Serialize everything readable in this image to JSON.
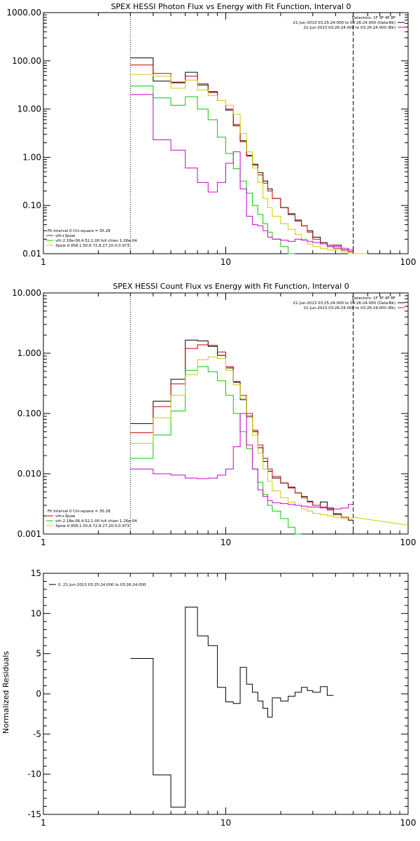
{
  "chart_data": [
    {
      "type": "line",
      "title": "SPEX HESSI Photon Flux vs Energy with Fit Function, Interval 0",
      "xscale": "log",
      "yscale": "log",
      "xlim": [
        1,
        100
      ],
      "ylim": [
        0.01,
        1000
      ],
      "xticks": [
        {
          "v": 1,
          "label": "1"
        },
        {
          "v": 10,
          "label": "10"
        },
        {
          "v": 100,
          "label": "100"
        }
      ],
      "yticks": [
        {
          "v": 0.01,
          "label": "0.01"
        },
        {
          "v": 0.1,
          "label": "0.10"
        },
        {
          "v": 1,
          "label": "1.00"
        },
        {
          "v": 10,
          "label": "10.00"
        },
        {
          "v": 100,
          "label": "100.00"
        },
        {
          "v": 1000,
          "label": "1000.00"
        }
      ],
      "energy_range_markers": [
        3,
        50
      ],
      "header_lines": [
        {
          "text": "Detectors: 1F 3F 4F 8F",
          "color": null
        },
        {
          "text": "21-Jun-2013 03:25:24.000 to 03:26:24.000 (Data-Bk)",
          "color": "#000000"
        },
        {
          "text": "21-Jun-2013 03:26:24.000 to 03:26:24.000 (Bk)",
          "color": "#cc00cc"
        }
      ],
      "fit_info": [
        "Fit Interval 0   Chi-square = 35.28",
        "vth+3pow",
        "vth 2.18e-06,4.52,1.00   full chian 1.26e-04",
        "3pow 0.958,1.50,6.72,8.27,20.0,0.973"
      ],
      "fit_info_colors": [
        null,
        "#cc0000",
        "#00cc00",
        "#cccc00"
      ],
      "edges": [
        3,
        4,
        5,
        6,
        7,
        8,
        9,
        10,
        11,
        12,
        13,
        14,
        15,
        16,
        17,
        18,
        20,
        22,
        24,
        26,
        28,
        30,
        33,
        36,
        39,
        43,
        47,
        50,
        55,
        60
      ],
      "series": [
        {
          "color": "#000000",
          "values": [
            115,
            38,
            36,
            58,
            33,
            23,
            15,
            9.5,
            4.5,
            2.2,
            1.1,
            0.72,
            0.48,
            0.32,
            0.22,
            0.14,
            0.09,
            0.065,
            0.048,
            0.038,
            0.03,
            0.022,
            0.017,
            0.015,
            0.015,
            0.012,
            0.011,
            null,
            null
          ]
        },
        {
          "color": "#cc0000",
          "values": [
            82,
            55,
            35,
            48,
            31,
            22,
            15,
            10,
            4.8,
            2.1,
            1.05,
            0.68,
            0.43,
            0.29,
            0.2,
            0.14,
            0.09,
            0.068,
            0.05,
            0.038,
            0.028,
            0.02,
            0.016,
            0.014,
            0.013,
            0.012,
            0.011,
            null,
            null
          ]
        },
        {
          "color": "#00cc00",
          "values": [
            30,
            17,
            12,
            18,
            10,
            6,
            2.6,
            1.2,
            0.58,
            0.32,
            0.18,
            0.1,
            0.065,
            0.042,
            0.028,
            0.02,
            0.014,
            0.01,
            null,
            null,
            null,
            null,
            null,
            null,
            null,
            null,
            null,
            null,
            null
          ]
        },
        {
          "color": "#cccc00",
          "values": [
            52,
            48,
            27,
            40,
            25,
            19,
            15,
            12,
            7.8,
            3.1,
            1.3,
            0.6,
            0.3,
            0.14,
            0.09,
            0.06,
            0.042,
            0.032,
            0.025,
            0.02,
            0.016,
            0.014,
            0.013,
            0.012,
            0.012,
            0.011,
            0.01,
            0.01,
            0.0095
          ]
        },
        {
          "color": "#cc00cc",
          "values": [
            20,
            2.3,
            1.4,
            0.6,
            0.3,
            0.19,
            0.3,
            0.75,
            1.3,
            0.22,
            0.06,
            0.04,
            0.038,
            0.03,
            0.022,
            0.02,
            0.019,
            0.018,
            0.02,
            0.019,
            0.018,
            0.017,
            0.016,
            0.015,
            0.014,
            0.013,
            0.012,
            null,
            null
          ]
        }
      ]
    },
    {
      "type": "line",
      "title": "SPEX HESSI Count Flux vs Energy with Fit Function, Interval 0",
      "xscale": "log",
      "yscale": "log",
      "xlim": [
        1,
        100
      ],
      "ylim": [
        0.001,
        10
      ],
      "xticks": [
        {
          "v": 1,
          "label": "1"
        },
        {
          "v": 10,
          "label": "10"
        },
        {
          "v": 100,
          "label": "100"
        }
      ],
      "yticks": [
        {
          "v": 0.001,
          "label": "0.001"
        },
        {
          "v": 0.01,
          "label": "0.010"
        },
        {
          "v": 0.1,
          "label": "0.100"
        },
        {
          "v": 1,
          "label": "1.000"
        },
        {
          "v": 10,
          "label": "10.000"
        }
      ],
      "energy_range_markers": [
        3,
        50
      ],
      "header_lines": [
        {
          "text": "Detectors: 1F 3F 4F 8F",
          "color": null
        },
        {
          "text": "21-Jun-2013 03:25:24.000 to 03:26:24.000 (Data-Bk)",
          "color": "#000000"
        },
        {
          "text": "21-Jun-2013 03:26:24.000 to 03:26:24.000 (Bk)",
          "color": "#cc00cc"
        }
      ],
      "fit_info": [
        "Fit Interval 0   Chi-square = 35.28",
        "vth+3pow",
        "vth 2.18e-06,4.52,1.00   full chian 1.26e-04",
        "3pow 0.958,1.50,6.72,8.27,20.0,0.973"
      ],
      "fit_info_colors": [
        null,
        "#cc0000",
        "#00cc00",
        "#cccc00"
      ],
      "edges": [
        3,
        4,
        5,
        6,
        7,
        8,
        9,
        10,
        11,
        12,
        13,
        14,
        15,
        16,
        17,
        18,
        20,
        22,
        24,
        26,
        28,
        30,
        33,
        36,
        39,
        43,
        47,
        50
      ],
      "series": [
        {
          "color": "#000000",
          "values": [
            0.068,
            0.16,
            0.37,
            1.65,
            1.6,
            1.3,
            0.92,
            0.57,
            0.33,
            0.17,
            0.09,
            0.05,
            0.027,
            0.016,
            0.011,
            0.0085,
            0.007,
            0.006,
            0.0048,
            0.0042,
            0.0035,
            0.003,
            0.0034,
            0.0027,
            0.0021,
            0.0019,
            0.0017
          ]
        },
        {
          "color": "#cc0000",
          "values": [
            0.048,
            0.13,
            0.31,
            1.2,
            1.38,
            1.35,
            1.05,
            0.6,
            0.34,
            0.2,
            0.1,
            0.053,
            0.03,
            0.018,
            0.012,
            0.009,
            0.007,
            0.0058,
            0.0048,
            0.004,
            0.0034,
            0.003,
            0.0028,
            0.0025,
            0.0022,
            0.0019,
            0.0018
          ]
        },
        {
          "color": "#00cc00",
          "values": [
            0.018,
            0.044,
            0.11,
            0.52,
            0.6,
            0.49,
            0.35,
            0.2,
            0.1,
            0.05,
            0.026,
            0.012,
            0.0072,
            0.0045,
            0.003,
            0.0024,
            0.0018,
            0.0013,
            0.00085,
            null,
            null,
            null,
            null,
            null,
            null,
            null,
            null
          ]
        },
        {
          "color": "#cccc00",
          "values": [
            0.032,
            0.085,
            0.2,
            0.44,
            0.78,
            0.87,
            0.82,
            0.52,
            0.3,
            0.18,
            0.085,
            0.044,
            0.022,
            0.012,
            0.0075,
            0.0052,
            0.004,
            0.0034,
            0.003,
            0.0026,
            0.0024,
            0.0022,
            0.0021,
            0.002,
            0.0019,
            0.0018,
            0.0018
          ]
        },
        {
          "color": "#cc00cc",
          "values": [
            0.012,
            0.01,
            0.0095,
            0.0085,
            0.0083,
            0.0085,
            0.0095,
            0.012,
            0.028,
            0.1,
            0.03,
            0.012,
            0.0054,
            0.0042,
            0.0036,
            0.0033,
            0.0032,
            0.0031,
            0.003,
            0.0029,
            0.0028,
            0.0028,
            0.0027,
            0.0026,
            0.0026,
            0.0027,
            0.0031
          ]
        }
      ],
      "extra_curve": {
        "color": "#cccc00",
        "x": [
          50,
          100
        ],
        "y": [
          0.0019,
          0.0014
        ]
      }
    },
    {
      "type": "line",
      "title": "",
      "xscale": "log",
      "yscale": "linear",
      "xlim": [
        1,
        100
      ],
      "ylim": [
        -15,
        15
      ],
      "ylabel": "Normalized Residuals",
      "xticks": [
        {
          "v": 1,
          "label": "1"
        },
        {
          "v": 10,
          "label": "10"
        },
        {
          "v": 100,
          "label": "100"
        }
      ],
      "yticks": [
        {
          "v": -15,
          "label": "-15"
        },
        {
          "v": -10,
          "label": "-10"
        },
        {
          "v": -5,
          "label": "-5"
        },
        {
          "v": 0,
          "label": "0"
        },
        {
          "v": 5,
          "label": "5"
        },
        {
          "v": 10,
          "label": "10"
        },
        {
          "v": 15,
          "label": "15"
        }
      ],
      "legend_text": "0. 21-Jun-2013 03:25:24.000 to 03:26:24.000",
      "edges": [
        3,
        4,
        5,
        6,
        7,
        8,
        9,
        10,
        11,
        12,
        13,
        14,
        15,
        16,
        17,
        18,
        20,
        22,
        24,
        26,
        28,
        30,
        33,
        36,
        39,
        43,
        47,
        50
      ],
      "series": [
        {
          "color": "#000000",
          "values": [
            4.4,
            -10.1,
            -14.1,
            10.8,
            7.2,
            6.0,
            0.8,
            -1.0,
            -1.2,
            3.3,
            1.2,
            0.2,
            -0.9,
            -1.8,
            -2.9,
            -0.5,
            -0.9,
            -0.3,
            0.2,
            0.8,
            0.4,
            0.2,
            0.9,
            -0.2,
            null,
            null,
            null
          ]
        }
      ]
    }
  ]
}
